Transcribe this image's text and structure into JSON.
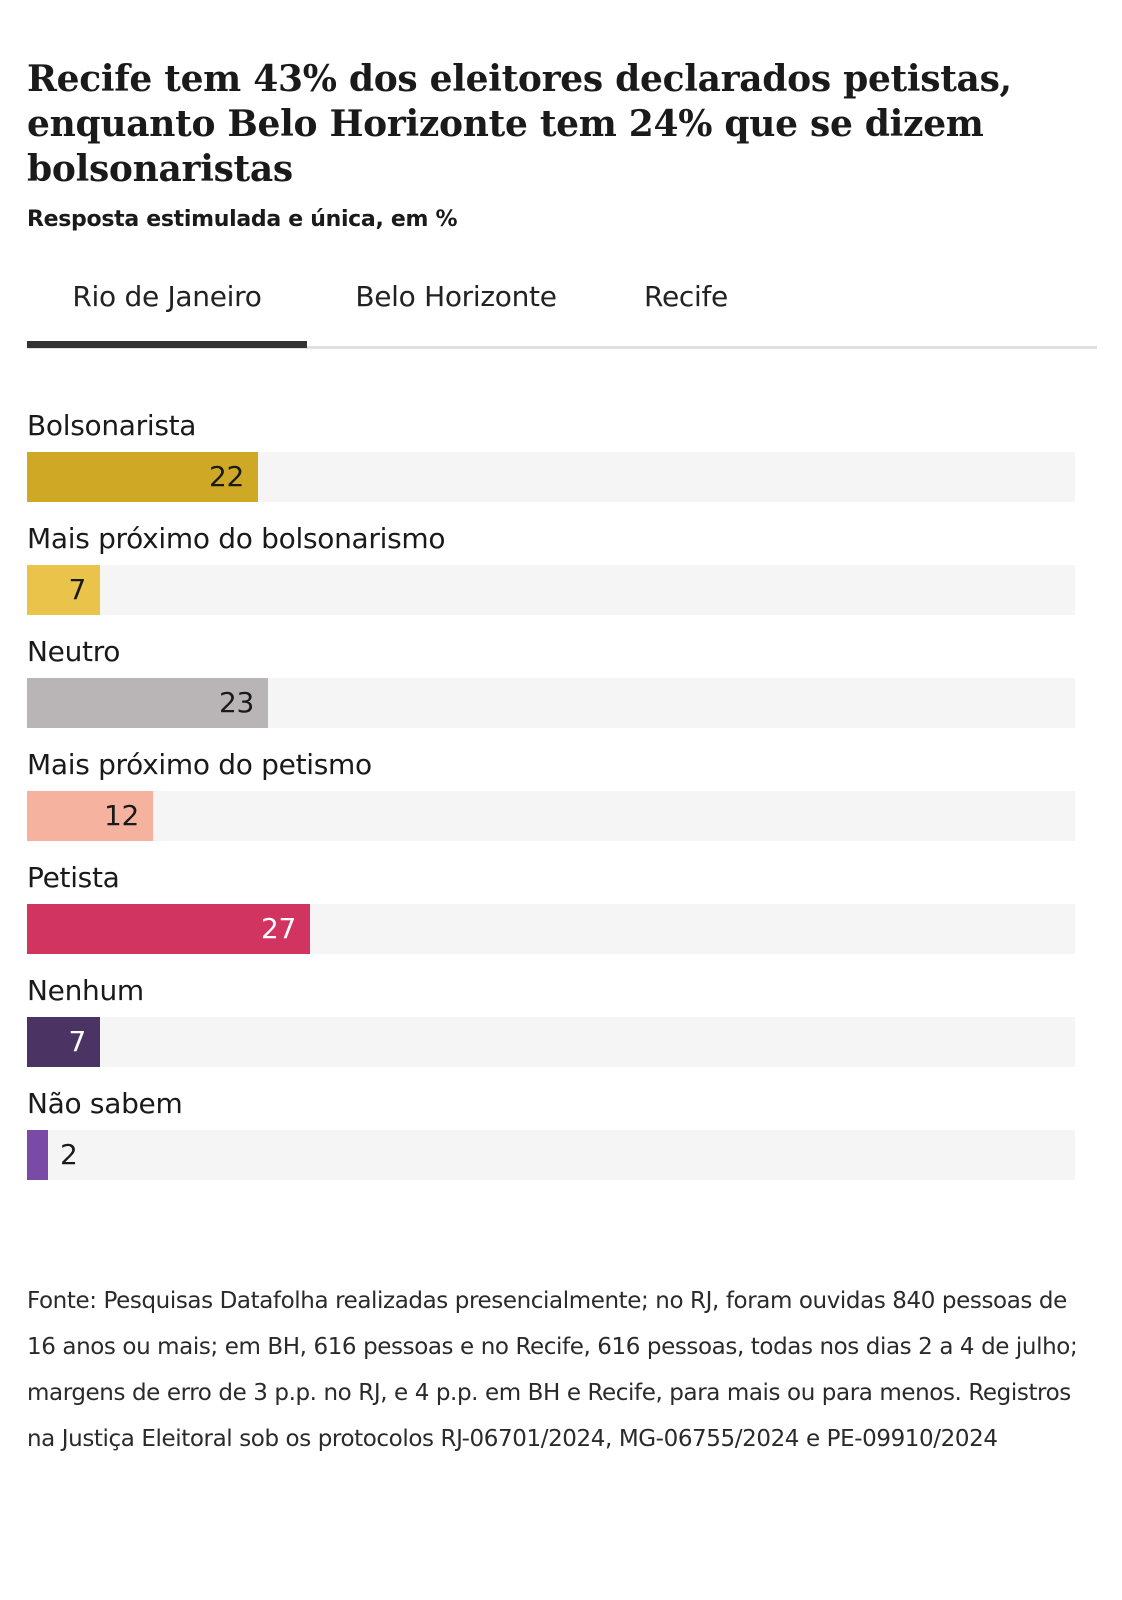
{
  "header": {
    "title": "Recife tem 43% dos eleitores declarados petistas, enquanto Belo Horizonte tem 24% que se dizem bolsonaristas",
    "subtitle": "Resposta estimulada e única, em %"
  },
  "tabs": [
    {
      "label": "Rio de Janeiro",
      "active": true
    },
    {
      "label": "Belo Horizonte",
      "active": false
    },
    {
      "label": "Recife",
      "active": false
    }
  ],
  "chart_data": {
    "type": "bar",
    "orientation": "horizontal",
    "title": "Recife tem 43% dos eleitores declarados petistas, enquanto Belo Horizonte tem 24% que se dizem bolsonaristas",
    "subtitle": "Resposta estimulada e única, em %",
    "xlim": [
      0,
      100
    ],
    "categories": [
      "Bolsonarista",
      "Mais próximo do bolsonarismo",
      "Neutro",
      "Mais próximo do petismo",
      "Petista",
      "Nenhum",
      "Não sabem"
    ],
    "values": [
      22,
      7,
      23,
      12,
      27,
      7,
      2
    ],
    "value_labels": [
      "22",
      "7",
      "23",
      "12",
      "27",
      "7",
      "2"
    ],
    "colors": [
      "#cfa825",
      "#eac44a",
      "#b9b5b6",
      "#f5b29e",
      "#d23462",
      "#4b3463",
      "#7a4ba6"
    ],
    "label_colors": [
      "#1a1a1a",
      "#1a1a1a",
      "#1a1a1a",
      "#1a1a1a",
      "#ffffff",
      "#ffffff",
      "#1a1a1a"
    ],
    "grid": false,
    "legend": "none"
  },
  "footer": {
    "source": "Fonte: Pesquisas Datafolha realizadas presencialmente; no RJ, foram ouvidas 840 pessoas de 16 anos ou mais; em BH, 616 pessoas e no Recife, 616 pessoas, todas nos dias 2 a 4 de julho; margens de erro de 3 p.p. no RJ, e 4 p.p. em BH e Recife, para mais ou para menos. Registros na Justiça Eleitoral sob os protocolos RJ-06701/2024, MG-06755/2024 e PE-09910/2024"
  }
}
